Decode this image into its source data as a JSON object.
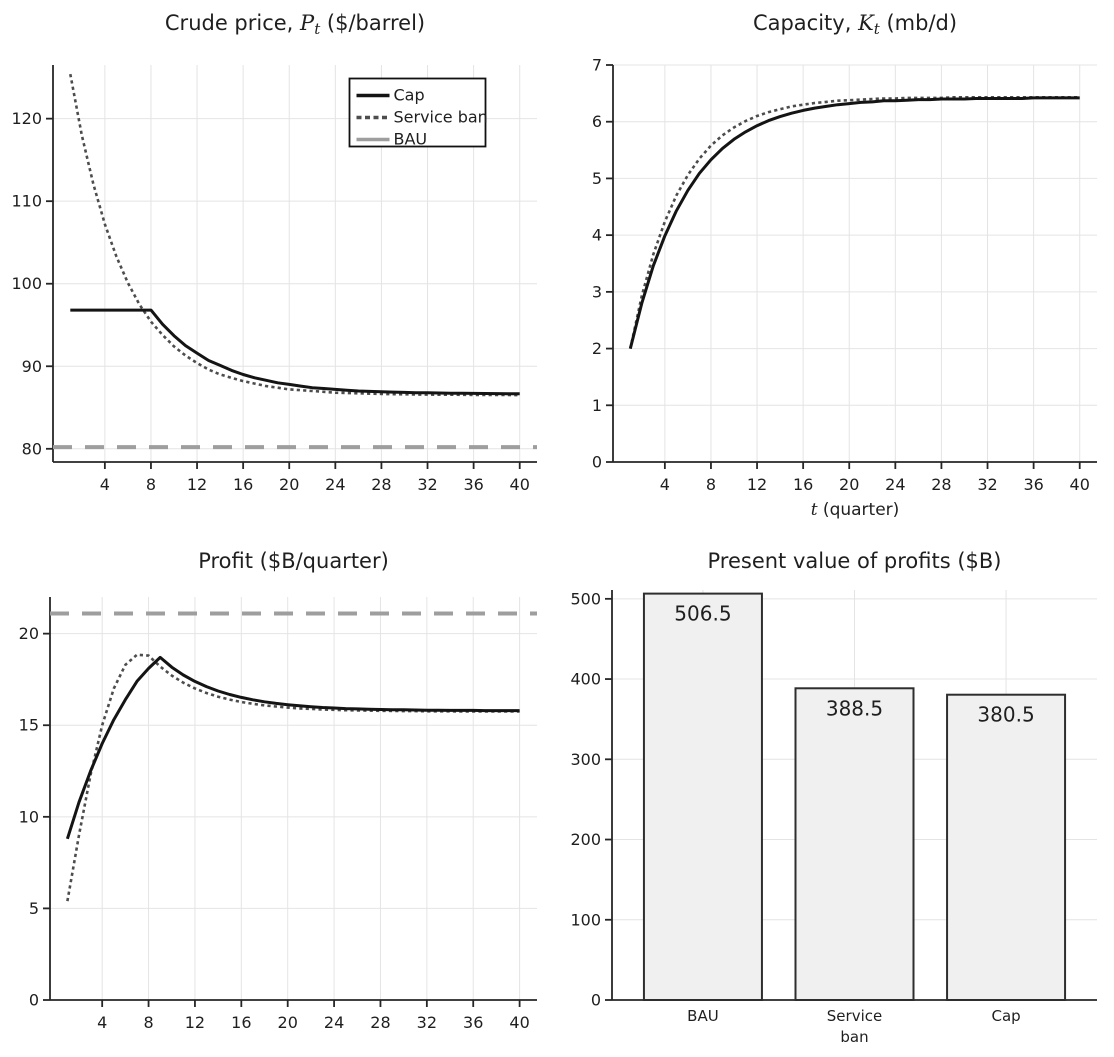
{
  "page": {
    "background": "#ffffff"
  },
  "colors": {
    "cap": "#141414",
    "service_ban": "#4d4d4d",
    "bau": "#9e9e9e",
    "grid": "#e4e4e4",
    "axis": "#262626",
    "text": "#1f1f1f",
    "legend_border": "#111111",
    "legend_bg": "#ffffff",
    "bar_fill": "#f0f0f0",
    "bar_edge": "#2e2e2e"
  },
  "chart_data": [
    {
      "name": "crude-price",
      "type": "line",
      "title_text": "Crude price, P_t ($/barrel)",
      "title": {
        "prefix": "Crude price, ",
        "math_var": "P",
        "math_sub": "t",
        "suffix": " ($/barrel)"
      },
      "xlabel": null,
      "xlim": [
        -0.5,
        41.5
      ],
      "ylim": [
        78.4,
        126.5
      ],
      "xticks": [
        4,
        8,
        12,
        16,
        20,
        24,
        28,
        32,
        36,
        40
      ],
      "yticks": [
        80,
        90,
        100,
        110,
        120
      ],
      "grid": true,
      "legend": {
        "position": "top-right",
        "entries": [
          "Cap",
          "Service ban",
          "BAU"
        ]
      },
      "x": [
        1,
        2,
        3,
        4,
        5,
        6,
        7,
        8,
        9,
        10,
        11,
        12,
        13,
        14,
        15,
        16,
        17,
        18,
        19,
        20,
        21,
        22,
        23,
        24,
        25,
        26,
        27,
        28,
        29,
        30,
        31,
        32,
        33,
        34,
        35,
        36,
        37,
        38,
        39,
        40
      ],
      "series": [
        {
          "name": "BAU",
          "style": "bau",
          "hline": 80.2,
          "full_width": true
        },
        {
          "name": "Service ban",
          "style": "service-ban",
          "values": [
            125.4,
            118.0,
            112.1,
            107.2,
            103.3,
            100.1,
            97.5,
            95.4,
            93.8,
            92.4,
            91.3,
            90.4,
            89.6,
            89.0,
            88.6,
            88.2,
            87.9,
            87.6,
            87.4,
            87.2,
            87.1,
            87.0,
            86.9,
            86.8,
            86.76,
            86.72,
            86.68,
            86.65,
            86.62,
            86.6,
            86.58,
            86.57,
            86.56,
            86.55,
            86.54,
            86.53,
            86.53,
            86.52,
            86.52,
            86.51
          ]
        },
        {
          "name": "Cap",
          "style": "cap",
          "values": [
            96.8,
            96.8,
            96.8,
            96.8,
            96.8,
            96.8,
            96.8,
            96.8,
            95.1,
            93.7,
            92.5,
            91.6,
            90.7,
            90.1,
            89.5,
            89.0,
            88.6,
            88.3,
            88.0,
            87.8,
            87.6,
            87.4,
            87.3,
            87.2,
            87.1,
            87.0,
            86.95,
            86.9,
            86.87,
            86.83,
            86.8,
            86.78,
            86.76,
            86.74,
            86.72,
            86.71,
            86.7,
            86.69,
            86.68,
            86.67
          ]
        }
      ]
    },
    {
      "name": "capacity",
      "type": "line",
      "title_text": "Capacity, K_t (mb/d)",
      "title": {
        "prefix": "Capacity, ",
        "math_var": "K",
        "math_sub": "t",
        "suffix": " (mb/d)"
      },
      "xlabel": {
        "math_var": "t",
        "suffix": " (quarter)"
      },
      "xlabel_text": "t (quarter)",
      "xlim": [
        -0.5,
        41.5
      ],
      "ylim": [
        0,
        7
      ],
      "xticks": [
        4,
        8,
        12,
        16,
        20,
        24,
        28,
        32,
        36,
        40
      ],
      "yticks": [
        0,
        1,
        2,
        3,
        4,
        5,
        6,
        7
      ],
      "grid": true,
      "legend": null,
      "x": [
        1,
        2,
        3,
        4,
        5,
        6,
        7,
        8,
        9,
        10,
        11,
        12,
        13,
        14,
        15,
        16,
        17,
        18,
        19,
        20,
        21,
        22,
        23,
        24,
        25,
        26,
        27,
        28,
        29,
        30,
        31,
        32,
        33,
        34,
        35,
        36,
        37,
        38,
        39,
        40
      ],
      "series": [
        {
          "name": "Service ban",
          "style": "service-ban",
          "values": [
            2.0,
            2.93,
            3.66,
            4.24,
            4.7,
            5.06,
            5.35,
            5.58,
            5.76,
            5.9,
            6.01,
            6.1,
            6.17,
            6.22,
            6.27,
            6.3,
            6.33,
            6.35,
            6.37,
            6.38,
            6.39,
            6.4,
            6.41,
            6.41,
            6.42,
            6.42,
            6.42,
            6.42,
            6.43,
            6.43,
            6.43,
            6.43,
            6.43,
            6.43,
            6.43,
            6.43,
            6.43,
            6.43,
            6.43,
            6.43
          ]
        },
        {
          "name": "Cap",
          "style": "cap",
          "values": [
            2.0,
            2.8,
            3.46,
            3.99,
            4.43,
            4.79,
            5.09,
            5.33,
            5.53,
            5.69,
            5.82,
            5.93,
            6.02,
            6.09,
            6.15,
            6.2,
            6.24,
            6.27,
            6.3,
            6.32,
            6.34,
            6.35,
            6.37,
            6.37,
            6.38,
            6.39,
            6.39,
            6.4,
            6.4,
            6.4,
            6.41,
            6.41,
            6.41,
            6.41,
            6.41,
            6.42,
            6.42,
            6.42,
            6.42,
            6.42
          ]
        }
      ]
    },
    {
      "name": "profit",
      "type": "line",
      "title_text": "Profit ($B/quarter)",
      "title": {
        "prefix": "Profit ($B/quarter)"
      },
      "xlabel": null,
      "xlim": [
        -0.5,
        41.5
      ],
      "ylim": [
        0,
        22
      ],
      "xticks": [
        4,
        8,
        12,
        16,
        20,
        24,
        28,
        32,
        36,
        40
      ],
      "yticks": [
        0,
        5,
        10,
        15,
        20
      ],
      "grid": true,
      "legend": null,
      "x": [
        1,
        2,
        3,
        4,
        5,
        6,
        7,
        8,
        9,
        10,
        11,
        12,
        13,
        14,
        15,
        16,
        17,
        18,
        19,
        20,
        21,
        22,
        23,
        24,
        25,
        26,
        27,
        28,
        29,
        30,
        31,
        32,
        33,
        34,
        35,
        36,
        37,
        38,
        39,
        40
      ],
      "series": [
        {
          "name": "BAU",
          "style": "bau",
          "hline": 21.1,
          "full_width": true
        },
        {
          "name": "Service ban",
          "style": "service-ban",
          "values": [
            5.4,
            9.0,
            12.3,
            15.0,
            17.0,
            18.3,
            18.85,
            18.8,
            18.2,
            17.71,
            17.32,
            17.01,
            16.76,
            16.56,
            16.4,
            16.27,
            16.17,
            16.08,
            16.02,
            15.96,
            15.92,
            15.89,
            15.86,
            15.84,
            15.82,
            15.81,
            15.8,
            15.79,
            15.78,
            15.77,
            15.77,
            15.76,
            15.76,
            15.76,
            15.75,
            15.75,
            15.75,
            15.75,
            15.75,
            15.75
          ]
        },
        {
          "name": "Cap",
          "style": "cap",
          "values": [
            8.8,
            10.8,
            12.5,
            14.0,
            15.3,
            16.4,
            17.4,
            18.1,
            18.7,
            18.17,
            17.74,
            17.39,
            17.11,
            16.87,
            16.68,
            16.52,
            16.39,
            16.28,
            16.19,
            16.12,
            16.06,
            16.01,
            15.97,
            15.94,
            15.91,
            15.89,
            15.87,
            15.86,
            15.85,
            15.84,
            15.83,
            15.82,
            15.82,
            15.81,
            15.81,
            15.81,
            15.8,
            15.8,
            15.8,
            15.8
          ]
        }
      ]
    },
    {
      "name": "present-value",
      "type": "bar",
      "title_text": "Present value of profits ($B)",
      "title": {
        "prefix": "Present value of profits ($B)"
      },
      "xlabel": null,
      "ylim": [
        0,
        511
      ],
      "yticks": [
        0,
        100,
        200,
        300,
        400,
        500
      ],
      "grid": true,
      "categories": [
        [
          "BAU"
        ],
        [
          "Service",
          "ban"
        ],
        [
          "Cap"
        ]
      ],
      "values": [
        506.5,
        388.5,
        380.5
      ],
      "bar_labels": [
        "506.5",
        "388.5",
        "380.5"
      ]
    }
  ]
}
